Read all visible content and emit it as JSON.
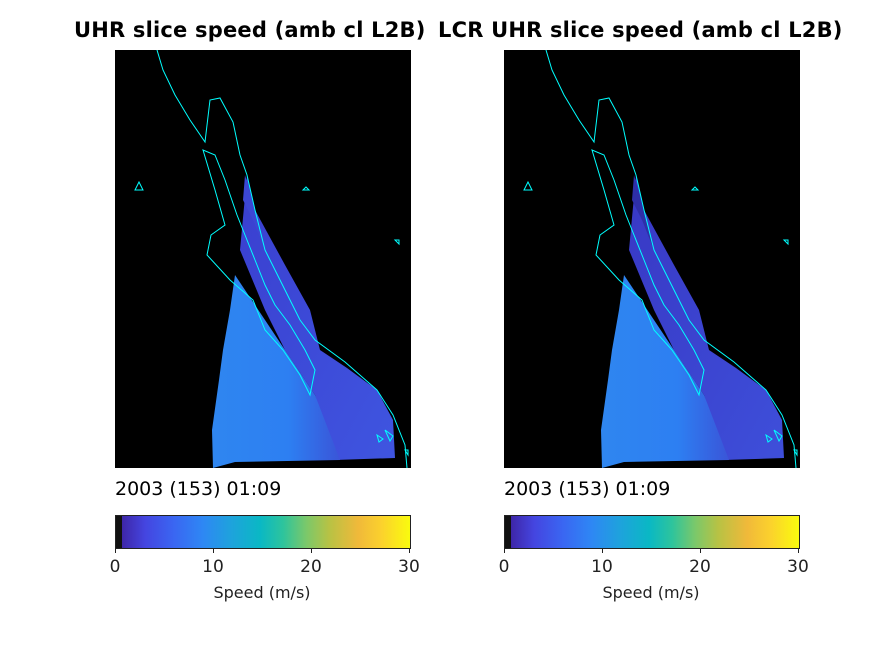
{
  "panels": [
    {
      "title": "UHR slice speed (amb cl L2B)",
      "timestamp": "2003 (153) 01:09",
      "colorbar": {
        "label": "Speed (m/s)",
        "ticks": [
          "0",
          "10",
          "20",
          "30"
        ]
      }
    },
    {
      "title": "LCR UHR slice speed (amb cl L2B)",
      "timestamp": "2003 (153) 01:09",
      "colorbar": {
        "label": "Speed (m/s)",
        "ticks": [
          "0",
          "10",
          "20",
          "30"
        ]
      }
    }
  ],
  "colors": {
    "background": "#000000",
    "coastline": "#00ffff",
    "colormap": "parula"
  }
}
